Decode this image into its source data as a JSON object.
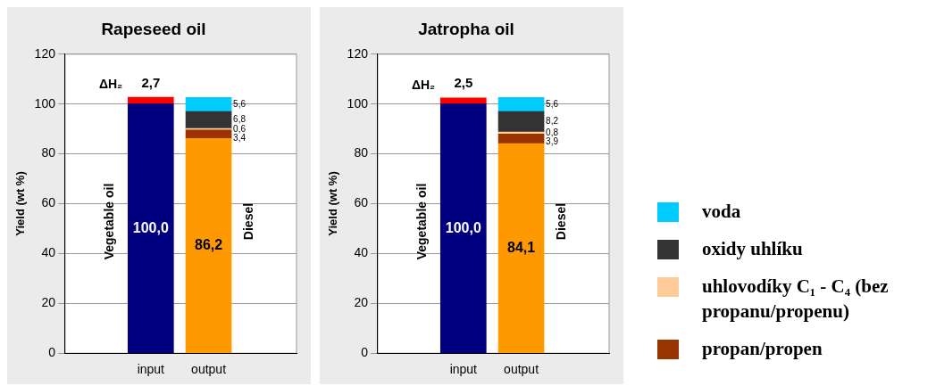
{
  "chart_data": [
    {
      "type": "bar",
      "title": "Rapeseed oil",
      "ylabel": "Yield (wt %)",
      "categories": [
        "input",
        "output"
      ],
      "stacked": true,
      "ylim": [
        0,
        120
      ],
      "yticks": [
        0,
        20,
        40,
        60,
        80,
        100,
        120
      ],
      "grid": "y",
      "series": [
        {
          "name": "Vegetable oil",
          "color": "#000080",
          "values": [
            100,
            null
          ],
          "value_labels": [
            "100,0",
            null
          ]
        },
        {
          "name": "ΔH₂",
          "color": "#ff0000",
          "values": [
            2.7,
            null
          ],
          "value_labels": [
            "2,7",
            null
          ]
        },
        {
          "name": "Diesel",
          "color": "#ff9900",
          "values": [
            null,
            86.2
          ],
          "value_labels": [
            null,
            "86,2"
          ]
        },
        {
          "color": "#993300",
          "values": [
            null,
            3.4
          ],
          "value_labels": [
            null,
            "3,4"
          ]
        },
        {
          "color": "#ffcc99",
          "values": [
            null,
            0.6
          ],
          "value_labels": [
            null,
            "0,6"
          ]
        },
        {
          "color": "#333333",
          "values": [
            null,
            6.8
          ],
          "value_labels": [
            null,
            "6,8"
          ]
        },
        {
          "color": "#00ccff",
          "values": [
            null,
            5.6
          ],
          "value_labels": [
            null,
            "5,6"
          ]
        }
      ]
    },
    {
      "type": "bar",
      "title": "Jatropha oil",
      "ylabel": "Yield (wt %)",
      "categories": [
        "input",
        "output"
      ],
      "stacked": true,
      "ylim": [
        0,
        120
      ],
      "yticks": [
        0,
        20,
        40,
        60,
        80,
        100,
        120
      ],
      "grid": "y",
      "legend": "right",
      "series": [
        {
          "name": "Vegetable oil",
          "color": "#000080",
          "values": [
            100,
            null
          ],
          "value_labels": [
            "100,0",
            null
          ]
        },
        {
          "name": "ΔH₂",
          "color": "#ff0000",
          "values": [
            2.5,
            null
          ],
          "value_labels": [
            "2,5",
            null
          ]
        },
        {
          "name": "Diesel",
          "color": "#ff9900",
          "values": [
            null,
            84.1
          ],
          "value_labels": [
            null,
            "84,1"
          ]
        },
        {
          "name": "propan/propen",
          "color": "#993300",
          "values": [
            null,
            3.9
          ],
          "value_labels": [
            null,
            "3,9"
          ]
        },
        {
          "name": "uhlovodíky C₁ - C₄ (bez propanu/propenu)",
          "color": "#ffcc99",
          "values": [
            null,
            0.8
          ],
          "value_labels": [
            null,
            "0,8"
          ]
        },
        {
          "name": "oxidy uhlíku",
          "color": "#333333",
          "values": [
            null,
            8.2
          ],
          "value_labels": [
            null,
            "8,2"
          ]
        },
        {
          "name": "voda",
          "color": "#00ccff",
          "values": [
            null,
            5.6
          ],
          "value_labels": [
            null,
            "5,6"
          ]
        }
      ]
    }
  ]
}
